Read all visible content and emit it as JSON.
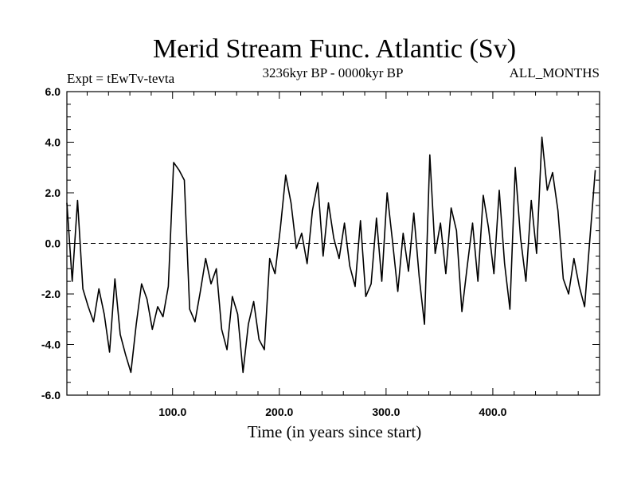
{
  "chart_data": {
    "type": "line",
    "title": "Merid Stream Func. Atlantic (Sv)",
    "left_label": "Expt = tEwTv-tevta",
    "center_label": "3236kyr BP - 0000kyr BP",
    "right_label": "ALL_MONTHS",
    "xlabel": "Time (in years since start)",
    "ylabel": "",
    "xlim": [
      1,
      500
    ],
    "ylim": [
      -6.0,
      6.0
    ],
    "x_ticks": [
      100,
      200,
      300,
      400
    ],
    "x_tick_labels": [
      "100.0",
      "200.0",
      "300.0",
      "400.0"
    ],
    "y_ticks": [
      -6,
      -4,
      -2,
      0,
      2,
      4,
      6
    ],
    "y_tick_labels": [
      "-6.0",
      "-4.0",
      "-2.0",
      "0.0",
      "2.0",
      "4.0",
      "6.0"
    ],
    "reference_line": {
      "y": 0.0,
      "style": "dashed"
    },
    "series": [
      {
        "name": "Merid Stream Func. Atlantic",
        "x_start": 1,
        "x_step": 5,
        "values": [
          1.6,
          -1.5,
          1.7,
          -1.8,
          -2.5,
          -3.1,
          -1.8,
          -2.8,
          -4.3,
          -1.4,
          -3.6,
          -4.4,
          -5.1,
          -3.2,
          -1.6,
          -2.2,
          -3.4,
          -2.5,
          -2.9,
          -1.7,
          3.2,
          2.9,
          2.5,
          -2.6,
          -3.1,
          -1.9,
          -0.6,
          -1.6,
          -1.0,
          -3.4,
          -4.2,
          -2.1,
          -2.8,
          -5.1,
          -3.2,
          -2.3,
          -3.8,
          -4.2,
          -0.6,
          -1.2,
          0.6,
          2.7,
          1.6,
          -0.2,
          0.4,
          -0.8,
          1.3,
          2.4,
          -0.5,
          1.6,
          0.2,
          -0.6,
          0.8,
          -0.9,
          -1.7,
          0.9,
          -2.1,
          -1.6,
          1.0,
          -1.5,
          2.0,
          0.1,
          -1.9,
          0.4,
          -1.1,
          1.2,
          -1.3,
          -3.2,
          3.5,
          -0.4,
          0.8,
          -1.2,
          1.4,
          0.5,
          -2.7,
          -0.9,
          0.8,
          -1.5,
          1.9,
          0.6,
          -1.2,
          2.1,
          -0.8,
          -2.6,
          3.0,
          0.2,
          -1.5,
          1.7,
          -0.4,
          4.2,
          2.1,
          2.8,
          1.3,
          -1.4,
          -2.0,
          -0.6,
          -1.7,
          -2.5,
          0.2,
          2.9
        ]
      }
    ]
  }
}
